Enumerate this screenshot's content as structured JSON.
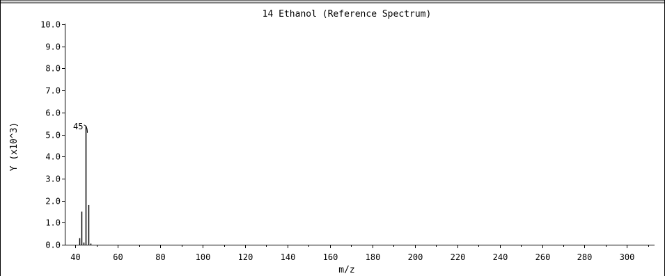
{
  "chart_data": {
    "type": "bar",
    "title": "14 Ethanol (Reference Spectrum)",
    "xlabel": "m/z",
    "ylabel": "Y (x10^3)",
    "xlim": [
      35,
      313
    ],
    "ylim": [
      0,
      10
    ],
    "x_ticks": [
      40,
      60,
      80,
      100,
      120,
      140,
      160,
      180,
      200,
      220,
      240,
      260,
      280,
      300
    ],
    "x_tick_labels": [
      "40",
      "60",
      "80",
      "100",
      "120",
      "140",
      "160",
      "180",
      "200",
      "220",
      "240",
      "260",
      "280",
      "300"
    ],
    "y_ticks": [
      0,
      1,
      2,
      3,
      4,
      5,
      6,
      7,
      8,
      9,
      10
    ],
    "y_tick_labels": [
      "0.0",
      "1.0",
      "2.0",
      "3.0",
      "4.0",
      "5.0",
      "6.0",
      "7.0",
      "8.0",
      "9.0",
      "10.0"
    ],
    "grid": false,
    "peaks": [
      {
        "x": 42,
        "y": 0.3
      },
      {
        "x": 43,
        "y": 1.5
      },
      {
        "x": 44,
        "y": 0.1
      },
      {
        "x": 45,
        "y": 5.4
      },
      {
        "x": 46,
        "y": 1.8
      },
      {
        "x": 47,
        "y": 0.05
      }
    ],
    "annotations": [
      {
        "text": "45",
        "x": 45,
        "y": 5.4
      }
    ]
  }
}
